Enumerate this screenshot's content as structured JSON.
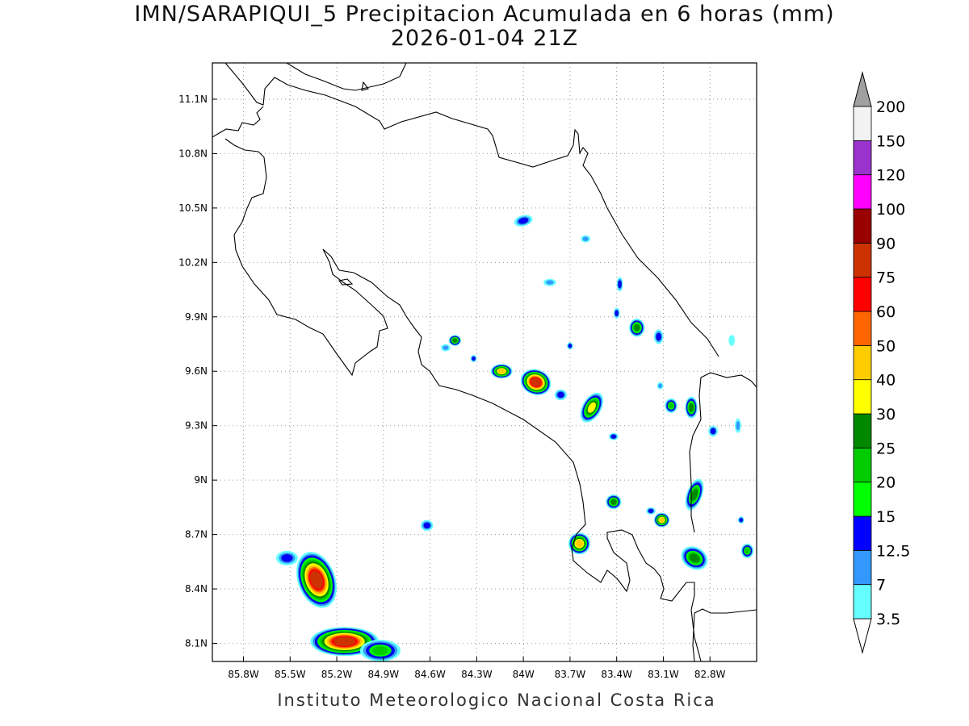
{
  "title_line1": "IMN/SARAPIQUI_5 Precipitacion Acumulada en 6 horas (mm)",
  "title_line2": "2026-01-04 21Z",
  "footer": "Instituto Meteorologico Nacional Costa Rica",
  "map": {
    "lon_range": [
      -86.0,
      -82.5
    ],
    "lat_range": [
      8.0,
      11.3
    ],
    "lon_ticks": [
      {
        "value": -85.8,
        "label": "85.8W"
      },
      {
        "value": -85.5,
        "label": "85.5W"
      },
      {
        "value": -85.2,
        "label": "85.2W"
      },
      {
        "value": -84.9,
        "label": "84.9W"
      },
      {
        "value": -84.6,
        "label": "84.6W"
      },
      {
        "value": -84.3,
        "label": "84.3W"
      },
      {
        "value": -84.0,
        "label": "84W"
      },
      {
        "value": -83.7,
        "label": "83.7W"
      },
      {
        "value": -83.4,
        "label": "83.4W"
      },
      {
        "value": -83.1,
        "label": "83.1W"
      },
      {
        "value": -82.8,
        "label": "82.8W"
      }
    ],
    "lat_ticks": [
      {
        "value": 11.1,
        "label": "11.1N"
      },
      {
        "value": 10.8,
        "label": "10.8N"
      },
      {
        "value": 10.5,
        "label": "10.5N"
      },
      {
        "value": 10.2,
        "label": "10.2N"
      },
      {
        "value": 9.9,
        "label": "9.9N"
      },
      {
        "value": 9.6,
        "label": "9.6N"
      },
      {
        "value": 9.3,
        "label": "9.3N"
      },
      {
        "value": 9.0,
        "label": "9N"
      },
      {
        "value": 8.7,
        "label": "8.7N"
      },
      {
        "value": 8.4,
        "label": "8.4N"
      },
      {
        "value": 8.1,
        "label": "8.1N"
      }
    ],
    "grid": "dotted"
  },
  "colorbar": {
    "labels": [
      "3.5",
      "7",
      "12.5",
      "15",
      "20",
      "25",
      "30",
      "40",
      "50",
      "60",
      "75",
      "90",
      "100",
      "120",
      "150",
      "200"
    ],
    "colors": [
      "#66ffff",
      "#3399ff",
      "#0000ff",
      "#00ff00",
      "#00cc00",
      "#008800",
      "#ffff00",
      "#ffcc00",
      "#ff6600",
      "#ff0000",
      "#cc3300",
      "#990000",
      "#ff00ff",
      "#9933cc",
      "#f2f2f2"
    ],
    "over_color": "#a0a0a0"
  },
  "rain_cells": [
    {
      "lon": -85.33,
      "lat": 8.45,
      "rx": 0.12,
      "ry": 0.16,
      "level": 10,
      "rot": -20
    },
    {
      "lon": -85.52,
      "lat": 8.57,
      "rx": 0.07,
      "ry": 0.04,
      "level": 2,
      "rot": 0
    },
    {
      "lon": -85.15,
      "lat": 8.11,
      "rx": 0.22,
      "ry": 0.08,
      "level": 10,
      "rot": 0
    },
    {
      "lon": -84.92,
      "lat": 8.06,
      "rx": 0.13,
      "ry": 0.06,
      "level": 4,
      "rot": 0
    },
    {
      "lon": -84.62,
      "lat": 8.75,
      "rx": 0.04,
      "ry": 0.03,
      "level": 2,
      "rot": 0
    },
    {
      "lon": -83.64,
      "lat": 8.65,
      "rx": 0.07,
      "ry": 0.06,
      "level": 7,
      "rot": 0
    },
    {
      "lon": -83.42,
      "lat": 8.88,
      "rx": 0.05,
      "ry": 0.04,
      "level": 5,
      "rot": 0
    },
    {
      "lon": -83.11,
      "lat": 8.78,
      "rx": 0.05,
      "ry": 0.04,
      "level": 7,
      "rot": 0
    },
    {
      "lon": -83.18,
      "lat": 8.83,
      "rx": 0.03,
      "ry": 0.02,
      "level": 2,
      "rot": 0
    },
    {
      "lon": -82.9,
      "lat": 8.57,
      "rx": 0.09,
      "ry": 0.06,
      "level": 5,
      "rot": 30
    },
    {
      "lon": -82.9,
      "lat": 8.92,
      "rx": 0.05,
      "ry": 0.09,
      "level": 5,
      "rot": 20
    },
    {
      "lon": -82.56,
      "lat": 8.61,
      "rx": 0.04,
      "ry": 0.04,
      "level": 4,
      "rot": 0
    },
    {
      "lon": -82.92,
      "lat": 9.4,
      "rx": 0.04,
      "ry": 0.06,
      "level": 5,
      "rot": 0
    },
    {
      "lon": -83.05,
      "lat": 9.41,
      "rx": 0.04,
      "ry": 0.04,
      "level": 4,
      "rot": 0
    },
    {
      "lon": -82.78,
      "lat": 9.27,
      "rx": 0.03,
      "ry": 0.03,
      "level": 2,
      "rot": 0
    },
    {
      "lon": -83.56,
      "lat": 9.4,
      "rx": 0.06,
      "ry": 0.09,
      "level": 6,
      "rot": 30
    },
    {
      "lon": -83.42,
      "lat": 9.24,
      "rx": 0.03,
      "ry": 0.02,
      "level": 2,
      "rot": 0
    },
    {
      "lon": -83.92,
      "lat": 9.54,
      "rx": 0.1,
      "ry": 0.07,
      "level": 10,
      "rot": 20
    },
    {
      "lon": -84.14,
      "lat": 9.6,
      "rx": 0.07,
      "ry": 0.04,
      "level": 7,
      "rot": 0
    },
    {
      "lon": -83.76,
      "lat": 9.47,
      "rx": 0.04,
      "ry": 0.03,
      "level": 2,
      "rot": 0
    },
    {
      "lon": -84.44,
      "lat": 9.77,
      "rx": 0.04,
      "ry": 0.03,
      "level": 5,
      "rot": 0
    },
    {
      "lon": -84.5,
      "lat": 9.73,
      "rx": 0.03,
      "ry": 0.02,
      "level": 1,
      "rot": 0
    },
    {
      "lon": -83.27,
      "lat": 9.84,
      "rx": 0.05,
      "ry": 0.05,
      "level": 5,
      "rot": 0
    },
    {
      "lon": -83.13,
      "lat": 9.79,
      "rx": 0.03,
      "ry": 0.04,
      "level": 2,
      "rot": 0
    },
    {
      "lon": -83.4,
      "lat": 9.92,
      "rx": 0.02,
      "ry": 0.03,
      "level": 2,
      "rot": 0
    },
    {
      "lon": -83.38,
      "lat": 10.08,
      "rx": 0.02,
      "ry": 0.04,
      "level": 2,
      "rot": 0
    },
    {
      "lon": -83.83,
      "lat": 10.09,
      "rx": 0.04,
      "ry": 0.02,
      "level": 1,
      "rot": 0
    },
    {
      "lon": -84.0,
      "lat": 10.43,
      "rx": 0.06,
      "ry": 0.03,
      "level": 2,
      "rot": -15
    },
    {
      "lon": -83.6,
      "lat": 10.33,
      "rx": 0.03,
      "ry": 0.02,
      "level": 1,
      "rot": 0
    },
    {
      "lon": -83.7,
      "lat": 9.74,
      "rx": 0.02,
      "ry": 0.02,
      "level": 2,
      "rot": 0
    },
    {
      "lon": -83.12,
      "lat": 9.52,
      "rx": 0.02,
      "ry": 0.02,
      "level": 1,
      "rot": 0
    },
    {
      "lon": -82.62,
      "lat": 9.3,
      "rx": 0.02,
      "ry": 0.04,
      "level": 1,
      "rot": 0
    },
    {
      "lon": -82.6,
      "lat": 8.78,
      "rx": 0.02,
      "ry": 0.02,
      "level": 2,
      "rot": 0
    },
    {
      "lon": -84.32,
      "lat": 9.67,
      "rx": 0.02,
      "ry": 0.02,
      "level": 2,
      "rot": 0
    },
    {
      "lon": -82.66,
      "lat": 9.77,
      "rx": 0.02,
      "ry": 0.03,
      "level": 0,
      "rot": 0
    }
  ]
}
